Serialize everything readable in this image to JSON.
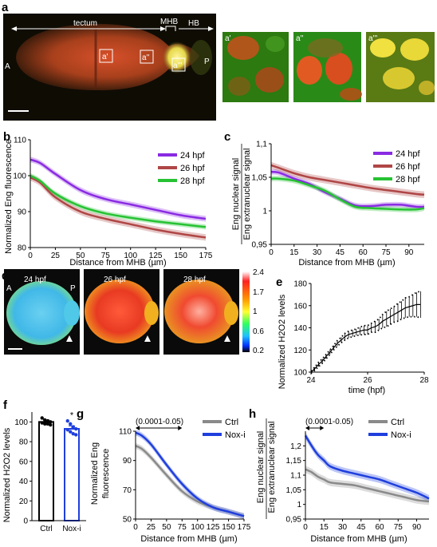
{
  "colors": {
    "purple": "#8a2be2",
    "brown": "#b04646",
    "green": "#27c234",
    "gray": "#8a8a8a",
    "blue": "#1f3fdd"
  },
  "panel_a": {
    "label": "a",
    "tectum": "tectum",
    "mhb": "MHB",
    "hb": "HB",
    "anterior": "A",
    "posterior": "P",
    "box1": "a'",
    "box2": "a''",
    "box3": "a'''",
    "insets": [
      "a'",
      "a''",
      "a'''"
    ]
  },
  "panel_d": {
    "label": "d",
    "times": [
      "24 hpf",
      "26 hpf",
      "28 hpf"
    ],
    "anterior": "A",
    "posterior": "P",
    "colorbar_ticks": [
      "2.4",
      "1.7",
      "1",
      "0.6",
      "0.2"
    ]
  },
  "chart_data": [
    {
      "panel": "b",
      "type": "line",
      "xlabel": "Distance from MHB (µm)",
      "ylabel": "Normalized Eng fluorescence",
      "xlim": [
        0,
        175
      ],
      "ylim": [
        80,
        110
      ],
      "xticks": [
        0,
        25,
        50,
        75,
        100,
        125,
        150,
        175
      ],
      "yticks": [
        80,
        90,
        100,
        110
      ],
      "ytick_labels": [
        "80",
        "90",
        "100",
        "110"
      ],
      "grid": false,
      "legend_position": "top-right",
      "series": [
        {
          "name": "24 hpf",
          "color": "#8a2be2",
          "x": [
            0,
            10,
            25,
            50,
            75,
            100,
            125,
            150,
            175
          ],
          "y": [
            104.5,
            103.5,
            100.5,
            96,
            93.5,
            92,
            90.5,
            89,
            88
          ],
          "err": 0.8
        },
        {
          "name": "26 hpf",
          "color": "#b04646",
          "x": [
            0,
            10,
            25,
            50,
            75,
            100,
            125,
            150,
            175
          ],
          "y": [
            99.5,
            98,
            94,
            90,
            88,
            86.5,
            85,
            83.8,
            82.8
          ],
          "err": 0.9
        },
        {
          "name": "28 hpf",
          "color": "#27c234",
          "x": [
            0,
            10,
            25,
            50,
            75,
            100,
            125,
            150,
            175
          ],
          "y": [
            100,
            98.5,
            95,
            91.5,
            89.5,
            88.3,
            87.3,
            86.5,
            85.7
          ],
          "err": 0.7
        }
      ]
    },
    {
      "panel": "c",
      "type": "line",
      "xlabel": "Distance from MHB (µm)",
      "ylabel_top": "Eng nuclear signal",
      "ylabel_bottom": "Eng extranuclear signal",
      "xlim": [
        0,
        100
      ],
      "ylim": [
        0.95,
        1.1
      ],
      "xticks": [
        0,
        15,
        30,
        45,
        60,
        75,
        90
      ],
      "yticks": [
        0.95,
        1,
        1.05,
        1.1
      ],
      "ytick_labels": [
        "0,95",
        "1",
        "1,05",
        "1,1"
      ],
      "grid": false,
      "legend_position": "top-right",
      "series": [
        {
          "name": "24 hpf",
          "color": "#8a2be2",
          "x": [
            0,
            5,
            15,
            25,
            35,
            45,
            55,
            65,
            75,
            85,
            95,
            100
          ],
          "y": [
            1.058,
            1.057,
            1.048,
            1.04,
            1.028,
            1.018,
            1.008,
            1.007,
            1.009,
            1.009,
            1.006,
            1.006
          ],
          "err": 0.004
        },
        {
          "name": "26 hpf",
          "color": "#b04646",
          "x": [
            0,
            5,
            15,
            25,
            35,
            45,
            55,
            65,
            75,
            85,
            95,
            100
          ],
          "y": [
            1.068,
            1.064,
            1.056,
            1.05,
            1.046,
            1.042,
            1.038,
            1.034,
            1.031,
            1.028,
            1.025,
            1.024
          ],
          "err": 0.005
        },
        {
          "name": "28 hpf",
          "color": "#27c234",
          "x": [
            0,
            5,
            15,
            25,
            35,
            45,
            55,
            65,
            75,
            85,
            95,
            100
          ],
          "y": [
            1.048,
            1.048,
            1.045,
            1.038,
            1.03,
            1.017,
            1.006,
            1.004,
            1.003,
            1.002,
            1.002,
            1.004
          ],
          "err": 0.004
        }
      ]
    },
    {
      "panel": "e",
      "type": "line",
      "xlabel": "time (hpf)",
      "ylabel": "Normalized H2O2 levels",
      "xlim": [
        24,
        28
      ],
      "ylim": [
        100,
        180
      ],
      "xticks": [
        24,
        26,
        28
      ],
      "yticks": [
        100,
        120,
        140,
        160,
        180
      ],
      "grid": false,
      "series": [
        {
          "name": "",
          "color": "#000000",
          "x": [
            24,
            24.13,
            24.27,
            24.4,
            24.53,
            24.67,
            24.8,
            24.93,
            25.07,
            25.2,
            25.33,
            25.47,
            25.6,
            25.73,
            25.87,
            26,
            26.13,
            26.27,
            26.4,
            26.53,
            26.67,
            26.8,
            26.93,
            27.07,
            27.2,
            27.33,
            27.47,
            27.6,
            27.73,
            27.87
          ],
          "y": [
            100,
            103,
            107,
            110,
            114,
            118,
            122,
            126,
            129,
            132,
            134,
            135,
            136,
            137,
            138,
            138,
            140,
            141,
            143,
            146,
            148,
            150,
            152,
            154,
            156,
            158,
            159,
            160,
            161,
            161
          ],
          "err": [
            1,
            1.5,
            2,
            2,
            2,
            2,
            2,
            2.5,
            2.5,
            3,
            3,
            3,
            3,
            3.5,
            4,
            4,
            4,
            5,
            5,
            6,
            7,
            7,
            7,
            8,
            8,
            9,
            9,
            10,
            11,
            12
          ]
        }
      ]
    },
    {
      "panel": "f",
      "type": "bar",
      "ylabel": "Normalized H2O2 levels",
      "ylim": [
        0,
        110
      ],
      "yticks": [
        0,
        20,
        40,
        60,
        80,
        100
      ],
      "categories": [
        "Ctrl",
        "Nox-i"
      ],
      "values": [
        100,
        93
      ],
      "errors": [
        2,
        3
      ],
      "colors": [
        "#000000",
        "#1f3fdd"
      ],
      "points": [
        [
          104,
          102,
          101,
          100,
          99,
          98,
          98,
          97
        ],
        [
          101,
          98,
          95,
          93,
          92,
          90,
          88,
          87
        ]
      ],
      "annotation": "*"
    },
    {
      "panel": "g",
      "type": "line",
      "xlabel": "Distance from MHB (µm)",
      "ylabel_top": "Normalized Eng",
      "ylabel_bottom": "fluorescence",
      "xlim": [
        0,
        175
      ],
      "ylim": [
        50,
        110
      ],
      "xticks": [
        0,
        25,
        50,
        75,
        100,
        125,
        150,
        175
      ],
      "yticks": [
        50,
        70,
        90,
        110
      ],
      "grid": false,
      "legend_position": "top-right",
      "range_label": "(0.0001-0.05)",
      "range_x": [
        0,
        75
      ],
      "series": [
        {
          "name": "Ctrl",
          "color": "#8a8a8a",
          "x": [
            0,
            10,
            25,
            50,
            75,
            100,
            125,
            150,
            175
          ],
          "y": [
            100,
            98,
            92,
            80,
            69,
            62,
            58,
            55,
            52
          ],
          "err": 2
        },
        {
          "name": "Nox-i",
          "color": "#1f3fdd",
          "x": [
            0,
            10,
            25,
            50,
            75,
            100,
            125,
            150,
            175
          ],
          "y": [
            109,
            107,
            101,
            87,
            74,
            64,
            58,
            55,
            52
          ],
          "err": 2
        }
      ]
    },
    {
      "panel": "h",
      "type": "line",
      "xlabel": "Distance from MHB (µm)",
      "ylabel_top": "Eng nuclear signal",
      "ylabel_bottom": "Eng extranuclear signal",
      "xlim": [
        0,
        100
      ],
      "ylim": [
        0.95,
        1.25
      ],
      "xticks": [
        0,
        15,
        30,
        45,
        60,
        75,
        90
      ],
      "yticks": [
        0.95,
        1,
        1.05,
        1.1,
        1.15,
        1.2
      ],
      "ytick_labels": [
        "0,95",
        "1",
        "1,05",
        "1,1",
        "1,15",
        "1,2"
      ],
      "grid": false,
      "legend_position": "top-right",
      "range_label": "(0.0001-0.05)",
      "range_x": [
        0,
        15
      ],
      "series": [
        {
          "name": "Ctrl",
          "color": "#8a8a8a",
          "x": [
            0,
            5,
            10,
            15,
            20,
            30,
            40,
            50,
            60,
            70,
            80,
            90,
            100
          ],
          "y": [
            1.12,
            1.11,
            1.095,
            1.085,
            1.075,
            1.07,
            1.065,
            1.055,
            1.045,
            1.035,
            1.025,
            1.015,
            1.01
          ],
          "err": 0.012
        },
        {
          "name": "Nox-i",
          "color": "#1f3fdd",
          "x": [
            0,
            5,
            10,
            15,
            20,
            30,
            40,
            50,
            60,
            70,
            80,
            90,
            100
          ],
          "y": [
            1.235,
            1.2,
            1.17,
            1.15,
            1.13,
            1.115,
            1.105,
            1.095,
            1.085,
            1.07,
            1.055,
            1.04,
            1.02
          ],
          "err": 0.012
        }
      ]
    }
  ]
}
